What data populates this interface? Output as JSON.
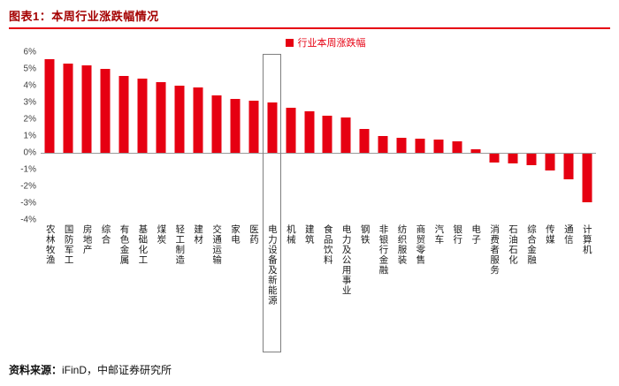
{
  "header": {
    "figure_label": "图表1：",
    "title": "本周行业涨跌幅情况"
  },
  "colors": {
    "bar_red": "#e60012",
    "title_red": "#a40000",
    "rule_red": "#e60012",
    "highlight_border": "#7f7f7f"
  },
  "footer": {
    "source_label": "资料来源：",
    "source_text": "iFinD，中邮证券研究所"
  },
  "chart_data": {
    "type": "bar",
    "title": "本周行业涨跌幅情况",
    "legend": "行业本周涨跌幅",
    "bar_color": "#e60012",
    "ylabel": "",
    "xlabel": "",
    "ylim": [
      -4,
      6
    ],
    "yticks": [
      "6%",
      "5%",
      "4%",
      "3%",
      "2%",
      "1%",
      "0%",
      "-1%",
      "-2%",
      "-3%",
      "-4%"
    ],
    "grid": false,
    "legend_position": "top-center",
    "highlighted_category": "电力设备及新能源",
    "categories": [
      "农林牧渔",
      "国防军工",
      "房地产",
      "综合",
      "有色金属",
      "基础化工",
      "煤炭",
      "轻工制造",
      "建材",
      "交通运输",
      "家电",
      "医药",
      "电力设备及新能源",
      "机械",
      "建筑",
      "食品饮料",
      "电力及公用事业",
      "钢铁",
      "非银行金融",
      "纺织服装",
      "商贸零售",
      "汽车",
      "银行",
      "电子",
      "消费者服务",
      "石油石化",
      "综合金融",
      "传媒",
      "通信",
      "计算机"
    ],
    "values": [
      5.6,
      5.3,
      5.2,
      5.0,
      4.6,
      4.4,
      4.2,
      4.0,
      3.9,
      3.4,
      3.2,
      3.1,
      3.0,
      2.7,
      2.5,
      2.2,
      2.1,
      1.4,
      1.0,
      0.9,
      0.85,
      0.8,
      0.7,
      0.2,
      -0.5,
      -0.6,
      -0.7,
      -1.0,
      -1.5,
      -2.9
    ]
  }
}
